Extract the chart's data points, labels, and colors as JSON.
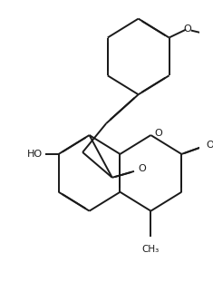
{
  "background_color": "#ffffff",
  "line_color": "#1a1a1a",
  "line_width": 1.4,
  "dbo": 0.018,
  "figsize": [
    2.35,
    3.11
  ],
  "dpi": 100,
  "xlim": [
    0,
    235
  ],
  "ylim": [
    0,
    311
  ]
}
